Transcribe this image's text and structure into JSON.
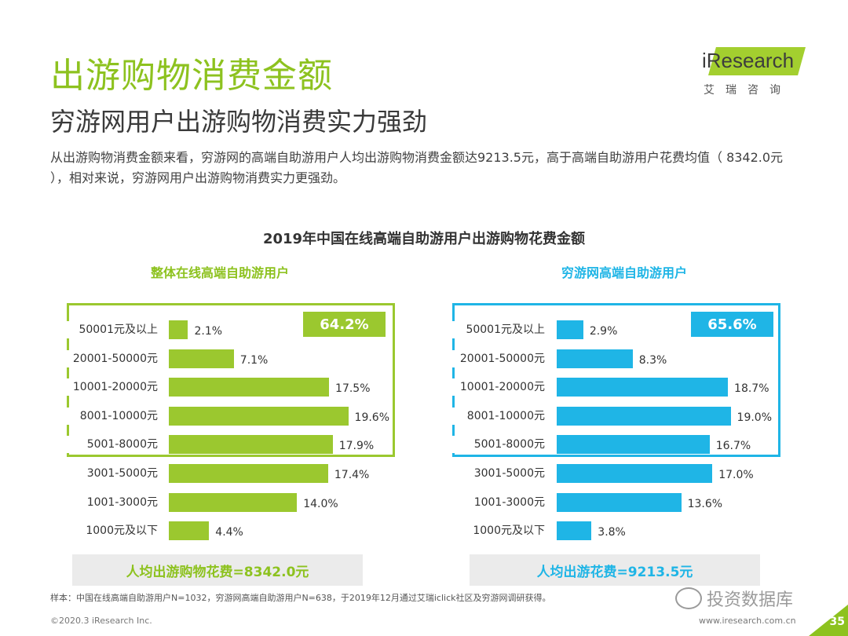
{
  "header": {
    "title": "出游购物消费金额",
    "subtitle": "穷游网用户出游购物消费实力强劲",
    "description": "从出游购物消费金额来看，穷游网的高端自助游用户人均出游购物消费金额达9213.5元，高于高端自助游用户花费均值（ 8342.0元 ），相对来说，穷游网用户出游购物消费实力更强劲。"
  },
  "logo": {
    "text": "iResearch",
    "cn": "艾瑞咨询"
  },
  "colors": {
    "green": "#9bc82f",
    "blue": "#1fb5e6",
    "title_green": "#8dc21f"
  },
  "chart_data": {
    "type": "bar",
    "orientation": "horizontal",
    "title": "2019年中国在线高端自助游用户出游购物花费金额",
    "categories": [
      "50001元及以上",
      "20001-50000元",
      "10001-20000元",
      "8001-10000元",
      "5001-8000元",
      "3001-5000元",
      "1001-3000元",
      "1000元及以下"
    ],
    "unit": "%",
    "series": [
      {
        "name": "整体在线高端自助游用户",
        "values": [
          2.1,
          7.1,
          17.5,
          19.6,
          17.9,
          17.4,
          14.0,
          4.4
        ],
        "value_labels": [
          "2.1%",
          "7.1%",
          "17.5%",
          "19.6%",
          "17.9%",
          "17.4%",
          "14.0%",
          "4.4%"
        ],
        "highlight_share": "64.2%",
        "average_label": "人均出游购物花费=8342.0元"
      },
      {
        "name": "穷游网高端自助游用户",
        "values": [
          2.9,
          8.3,
          18.7,
          19.0,
          16.7,
          17.0,
          13.6,
          3.8
        ],
        "value_labels": [
          "2.9%",
          "8.3%",
          "18.7%",
          "19.0%",
          "16.7%",
          "17.0%",
          "13.6%",
          "3.8%"
        ],
        "highlight_share": "65.6%",
        "average_label": "人均出游花费=9213.5元"
      }
    ],
    "xlim": [
      0,
      20
    ]
  },
  "footer": {
    "note": "样本：中国在线高端自助游用户N=1032，穷游网高端自助游用户N=638，于2019年12月通过艾瑞iclick社区及穷游网调研获得。",
    "copyright": "©2020.3 iResearch Inc.",
    "site": "www.iresearch.com.cn",
    "page": "35",
    "watermark": "投资数据库"
  }
}
